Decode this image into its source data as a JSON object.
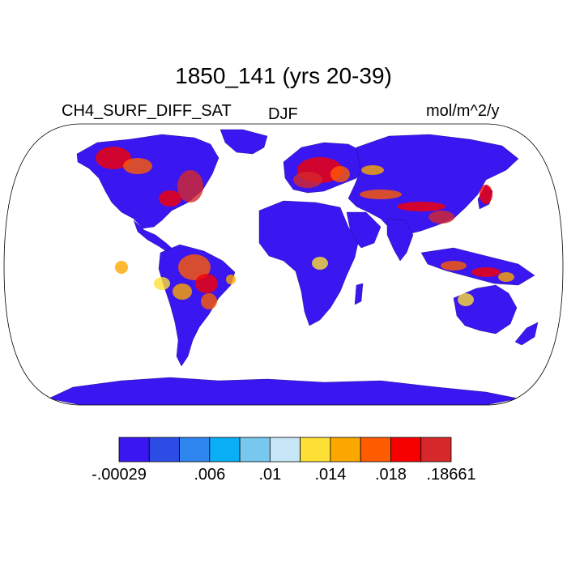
{
  "title": "1850_141 (yrs 20-39)",
  "variable": "CH4_SURF_DIFF_SAT",
  "season": "DJF",
  "units": "mol/m^2/y",
  "projection": "Robinson",
  "colorbar": {
    "colors": [
      "#3a16f0",
      "#2c4ce6",
      "#2f86ef",
      "#0aaef5",
      "#77c7ee",
      "#c7e7f8",
      "#fde035",
      "#fda800",
      "#ff5b00",
      "#f70000",
      "#d6282a"
    ],
    "tick_labels": [
      ".00029",
      ".006",
      ".01",
      ".014",
      ".018",
      ".18661"
    ],
    "tick_label_prefix": "-"
  },
  "background_color": "#ffffff",
  "land_base_color": "#3a16f0"
}
